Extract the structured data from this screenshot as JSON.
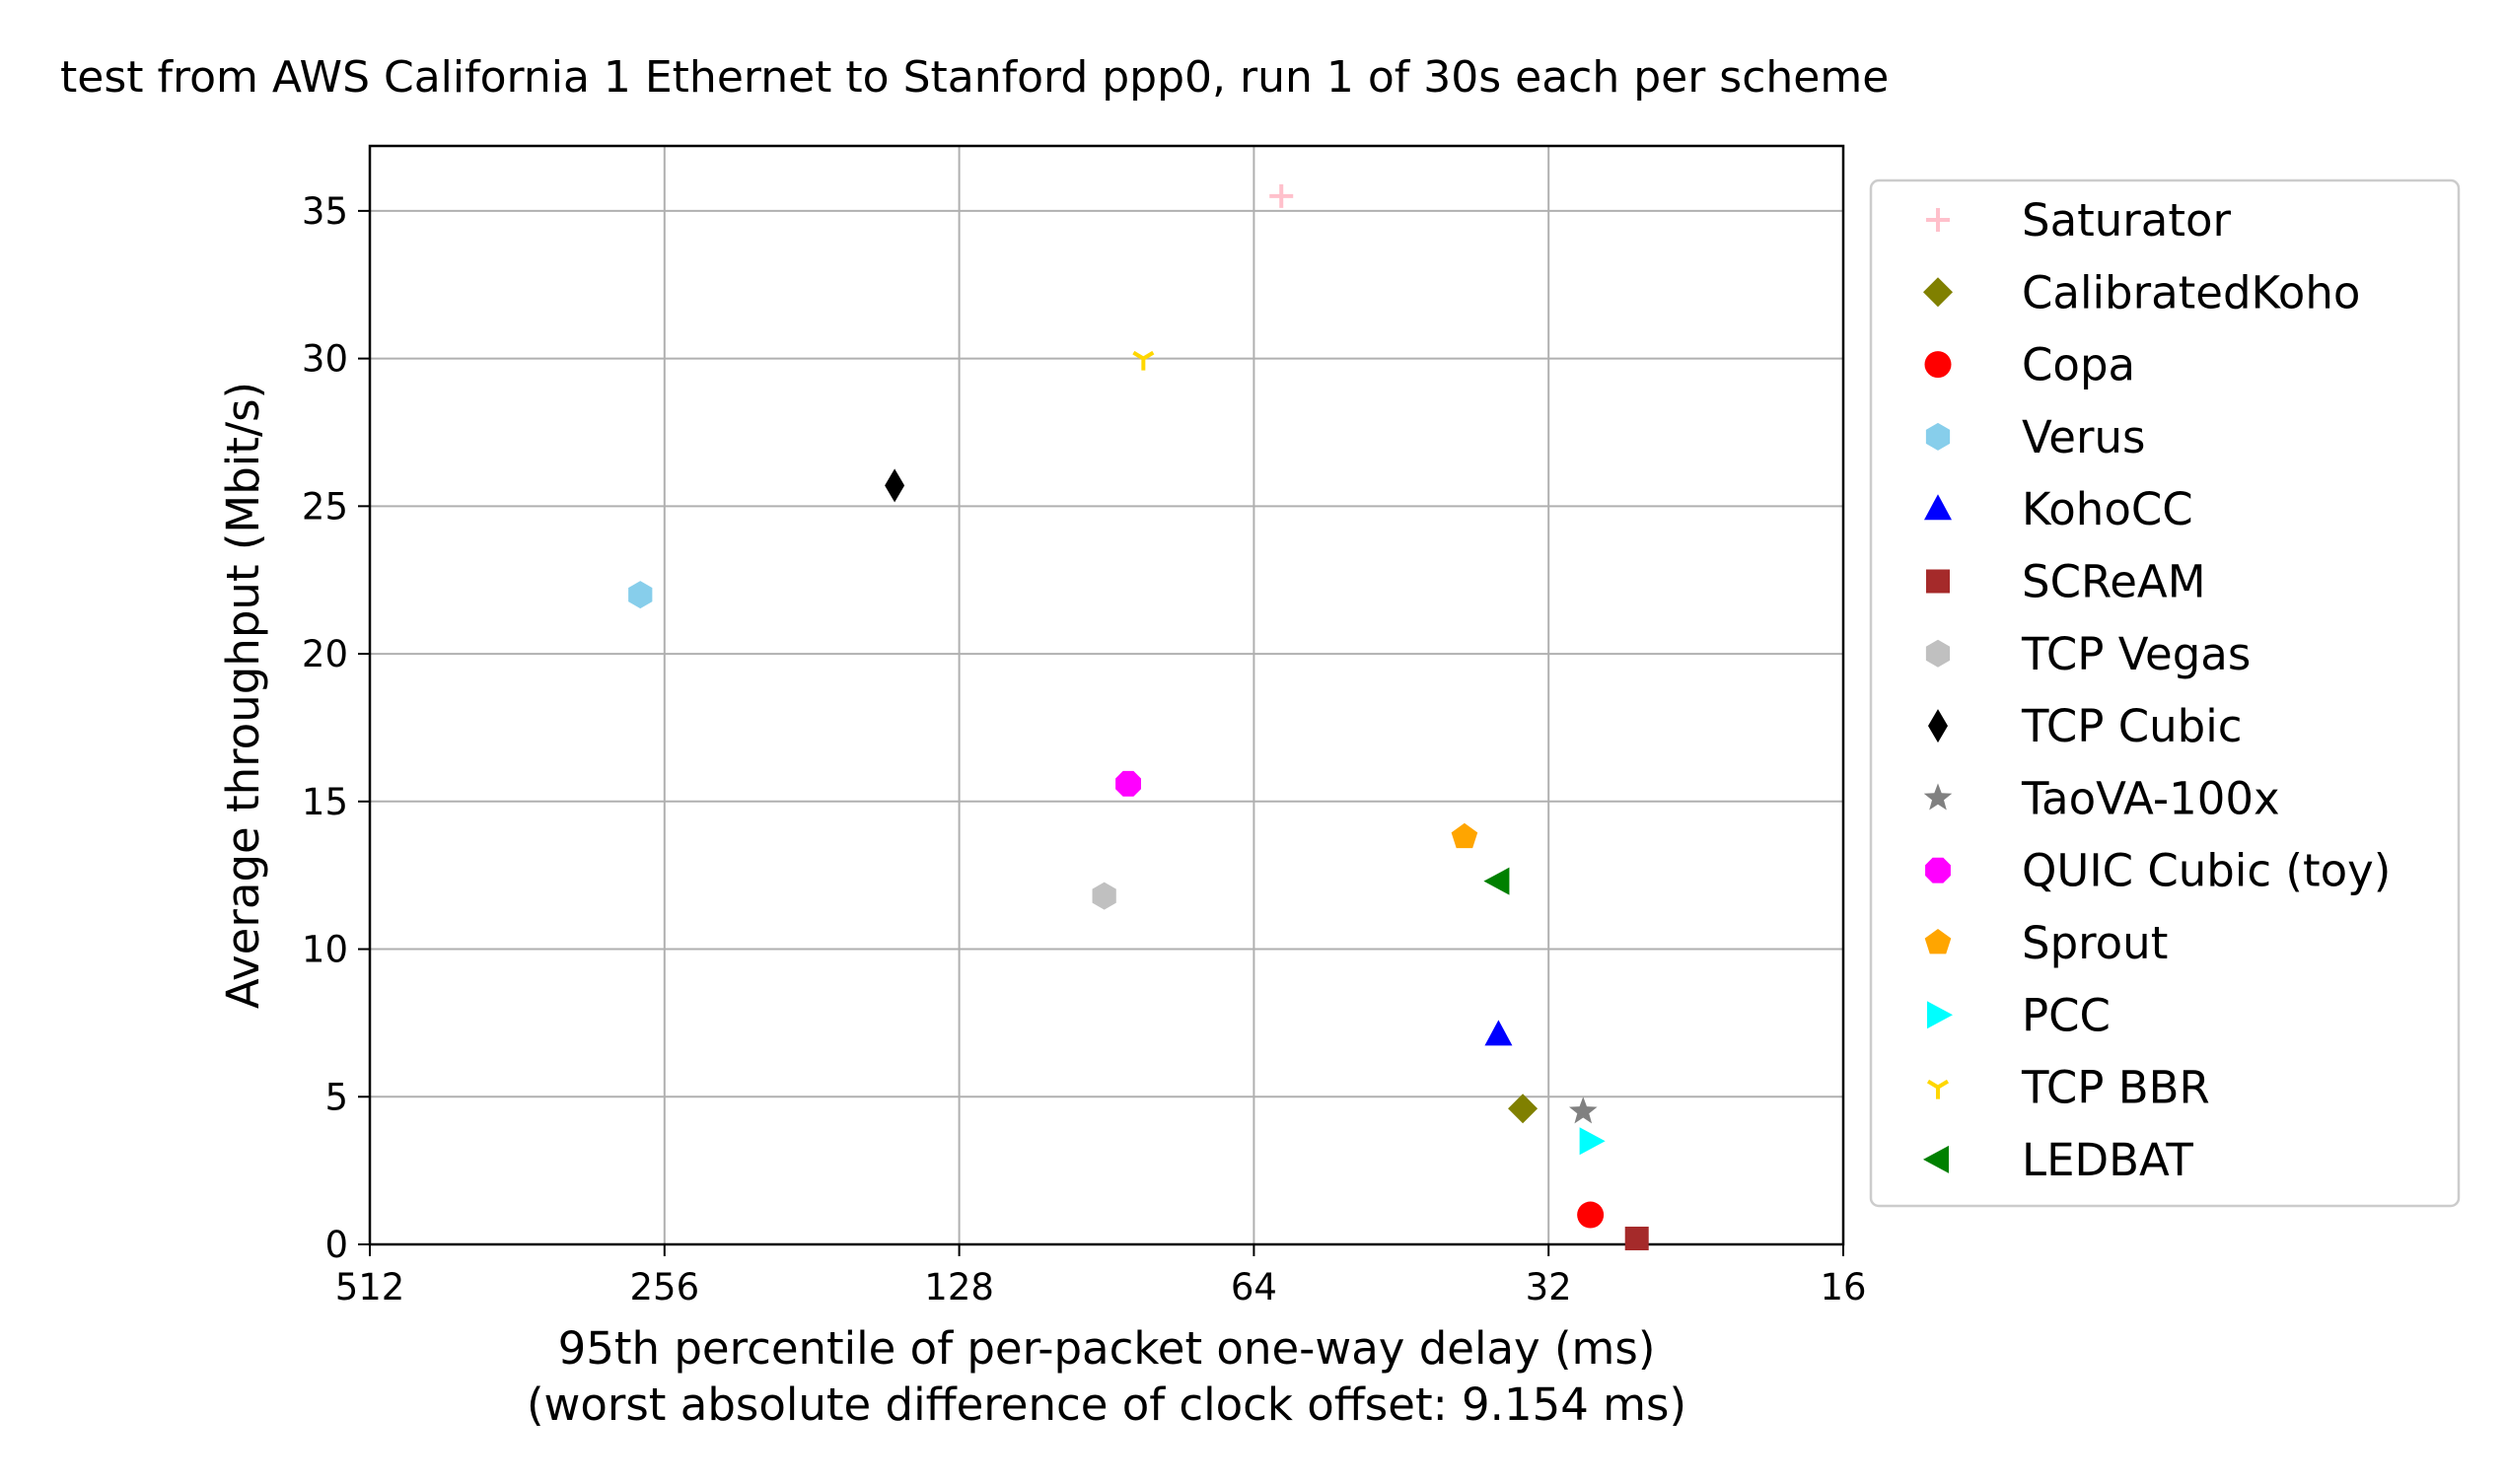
{
  "chart_data": {
    "type": "scatter",
    "title": "test from AWS California 1 Ethernet to Stanford ppp0, run 1 of 30s each per scheme",
    "xlabel": "95th percentile of per-packet one-way delay (ms)",
    "xlabel2": "(worst absolute difference of clock offset: 9.154 ms)",
    "ylabel": "Average throughput (Mbit/s)",
    "x_scale": "log2",
    "x_reversed": true,
    "xlim": [
      512,
      16
    ],
    "ylim": [
      0,
      37.2
    ],
    "x_ticks": [
      512,
      256,
      128,
      64,
      32,
      16
    ],
    "x_tick_labels": [
      "512",
      "256",
      "128",
      "64",
      "32",
      "16"
    ],
    "y_ticks": [
      0,
      5,
      10,
      15,
      20,
      25,
      30,
      35
    ],
    "y_tick_labels": [
      "0",
      "5",
      "10",
      "15",
      "20",
      "25",
      "30",
      "35"
    ],
    "grid": true,
    "legend_position": "outside-right",
    "series": [
      {
        "name": "Saturator",
        "marker": "plus",
        "color": "#ffc0cb",
        "x": 60,
        "y": 35.5
      },
      {
        "name": "CalibratedKoho",
        "marker": "diamond",
        "color": "#808000",
        "x": 34,
        "y": 4.6
      },
      {
        "name": "Copa",
        "marker": "circle",
        "color": "#ff0000",
        "x": 29,
        "y": 1.0
      },
      {
        "name": "Verus",
        "marker": "hexagon",
        "color": "#87ceeb",
        "x": 271,
        "y": 22.0
      },
      {
        "name": "KohoCC",
        "marker": "triangle-up",
        "color": "#0000ff",
        "x": 36,
        "y": 7.1
      },
      {
        "name": "SCReAM",
        "marker": "square",
        "color": "#a52a2a",
        "x": 26,
        "y": 0.2
      },
      {
        "name": "TCP Vegas",
        "marker": "hexagon",
        "color": "#c0c0c0",
        "x": 91,
        "y": 11.8
      },
      {
        "name": "TCP Cubic",
        "marker": "thin-diamond",
        "color": "#000000",
        "x": 149,
        "y": 25.7
      },
      {
        "name": "TaoVA-100x",
        "marker": "star",
        "color": "#808080",
        "x": 29.5,
        "y": 4.5
      },
      {
        "name": "QUIC Cubic (toy)",
        "marker": "octagon",
        "color": "#ff00ff",
        "x": 86,
        "y": 15.6
      },
      {
        "name": "Sprout",
        "marker": "pentagon",
        "color": "#ffa500",
        "x": 39,
        "y": 13.8
      },
      {
        "name": "PCC",
        "marker": "triangle-right",
        "color": "#00ffff",
        "x": 29,
        "y": 3.5
      },
      {
        "name": "TCP BBR",
        "marker": "tri-down",
        "color": "#ffd700",
        "x": 83,
        "y": 30.0
      },
      {
        "name": "LEDBAT",
        "marker": "triangle-left",
        "color": "#008000",
        "x": 36,
        "y": 12.3
      }
    ]
  }
}
